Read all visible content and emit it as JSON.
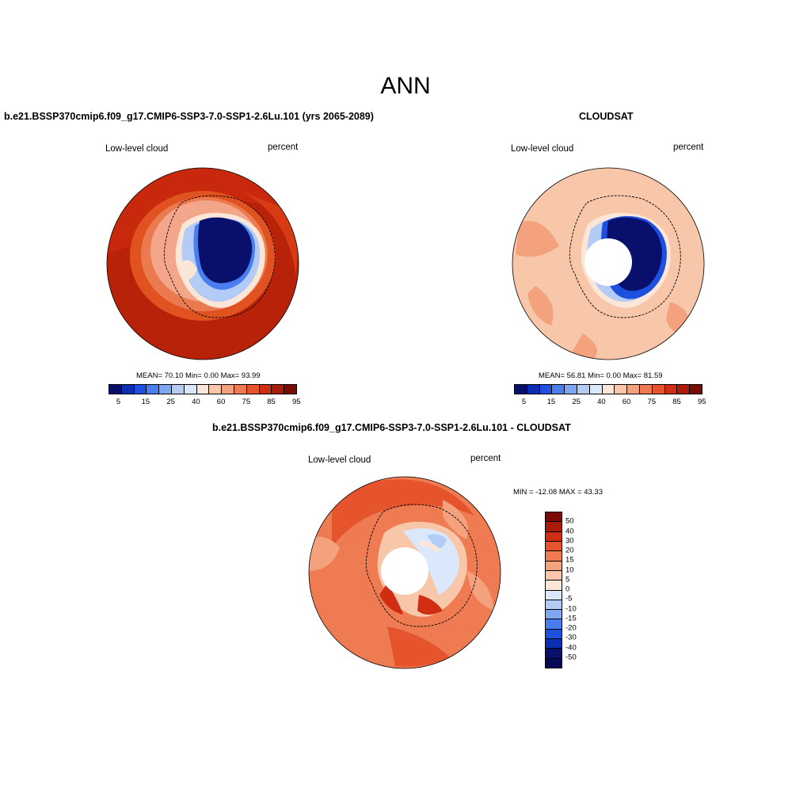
{
  "title": "ANN",
  "panels": [
    {
      "title": "b.e21.BSSP370cmip6.f09_g17.CMIP6-SSP3-7.0-SSP1-2.6Lu.101 (yrs 2065-2089)",
      "left_label": "Low-level cloud",
      "right_label": "percent",
      "stats": "MEAN=  70.10  Min=   0.00  Max=  93.99"
    },
    {
      "title": "CLOUDSAT",
      "left_label": "Low-level cloud",
      "right_label": "percent",
      "stats": "MEAN=  56.81  Min=   0.00  Max=  81.59"
    },
    {
      "title": "b.e21.BSSP370cmip6.f09_g17.CMIP6-SSP3-7.0-SSP1-2.6Lu.101 - CLOUDSAT",
      "left_label": "Low-level cloud",
      "right_label": "percent",
      "stats": "MIN = -12.08 MAX =  43.33"
    }
  ],
  "colorbar_abs": {
    "labels": [
      "5",
      "15",
      "25",
      "40",
      "60",
      "75",
      "85",
      "95"
    ],
    "colors": [
      "#08106b",
      "#0a2fb0",
      "#1e50e0",
      "#4a7ef0",
      "#7fa6f2",
      "#b3ccf5",
      "#dbe8fb",
      "#fbe6d8",
      "#f8c7aa",
      "#f4a27d",
      "#ef7b53",
      "#e5542c",
      "#d02d12",
      "#aa1b08",
      "#7c0a05"
    ]
  },
  "colorbar_diff": {
    "labels": [
      "50",
      "40",
      "30",
      "20",
      "15",
      "10",
      "5",
      "0",
      "-5",
      "-10",
      "-15",
      "-20",
      "-30",
      "-40",
      "-50"
    ],
    "colors": [
      "#7c0a05",
      "#aa1b08",
      "#d02d12",
      "#e5542c",
      "#ef7b53",
      "#f4a27d",
      "#f8c7aa",
      "#fbe6d8",
      "#dbe8fb",
      "#b3ccf5",
      "#7fa6f2",
      "#4a7ef0",
      "#1e50e0",
      "#0a2fb0",
      "#08106b",
      "#06085a"
    ]
  }
}
